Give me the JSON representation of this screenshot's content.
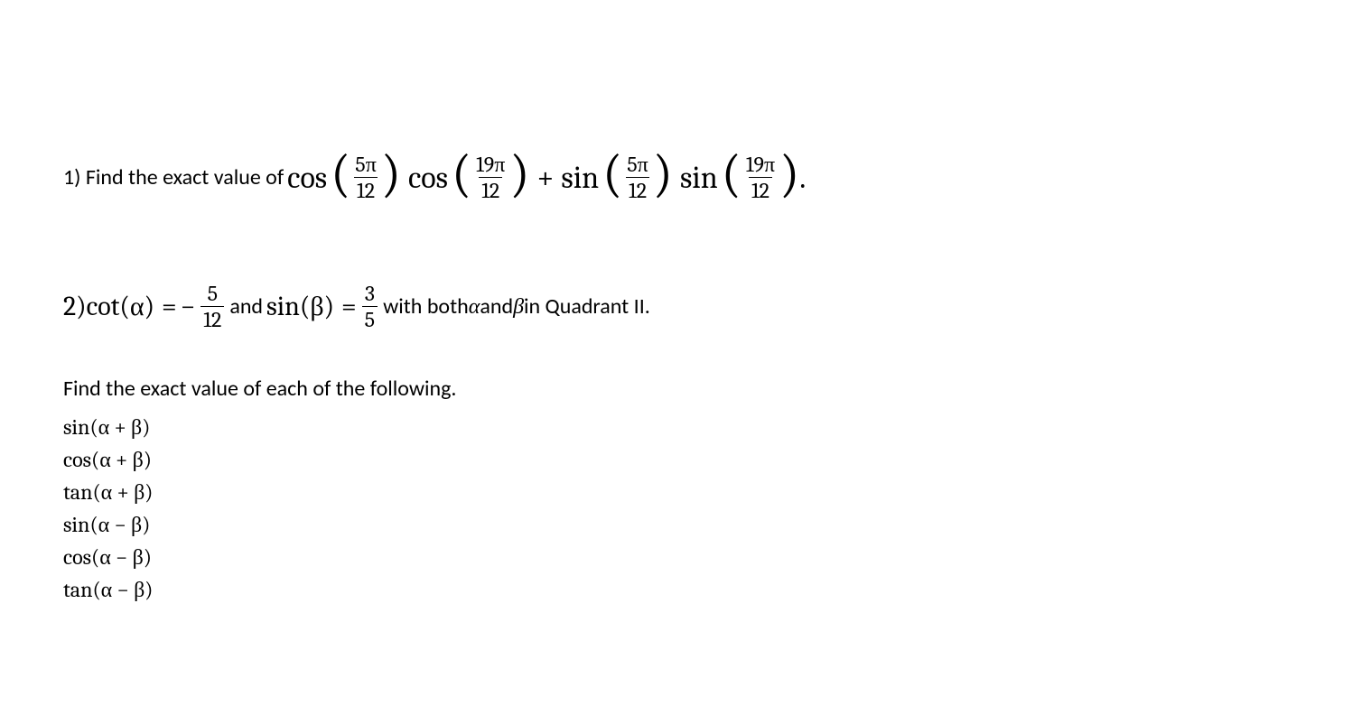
{
  "colors": {
    "background": "#ffffff",
    "text": "#000000"
  },
  "typography": {
    "body_font": "Calibri, Arial, sans-serif",
    "math_font": "Cambria Math, Cambria, Times New Roman, serif",
    "body_size_pt": 18,
    "math_large_size_pt": 26,
    "math_small_size_pt": 18
  },
  "problem1": {
    "lead": "1) Find the exact value of ",
    "terms": [
      {
        "func": "cos",
        "arg_num": "5π",
        "arg_den": "12"
      },
      {
        "func": "cos",
        "arg_num": "19π",
        "arg_den": "12"
      },
      {
        "op": "+"
      },
      {
        "func": "sin",
        "arg_num": "5π",
        "arg_den": "12"
      },
      {
        "func": "sin",
        "arg_num": "19π",
        "arg_den": "12"
      }
    ],
    "tail": "."
  },
  "problem2": {
    "prefix": "2) ",
    "cot_label": "cot(α)",
    "equals": " = ",
    "minus": "−",
    "cot_frac": {
      "num": "5",
      "den": "12"
    },
    "and_text": " and ",
    "sin_label": "sin(β)",
    "sin_frac": {
      "num": "3",
      "den": "5"
    },
    "with_text_1": " with both ",
    "alpha": "α",
    "and_short": " and ",
    "beta": "β",
    "with_text_2": " in Quadrant II."
  },
  "find": {
    "label": "Find the exact value of each of the following.",
    "expressions": [
      "sin(α + β)",
      "cos(α + β)",
      "tan(α + β)",
      "sin(α − β)",
      "cos(α − β)",
      "tan(α − β)"
    ]
  }
}
